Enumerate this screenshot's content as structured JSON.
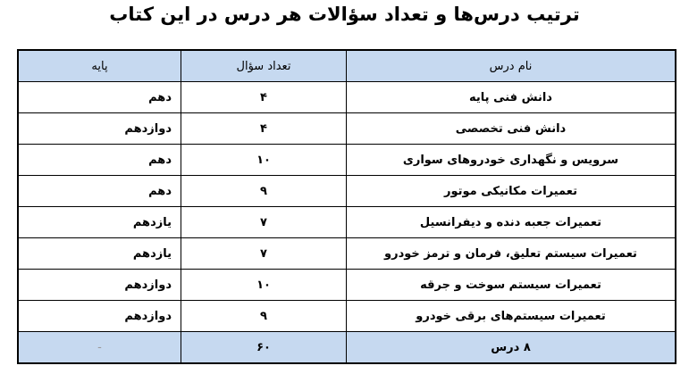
{
  "title": "ترتیب درس‌ها و تعداد سؤالات هر درس در این کتاب",
  "table": {
    "headers": {
      "name": "نام درس",
      "count": "تعداد سؤال",
      "level": "پایه"
    },
    "rows": [
      {
        "name": "دانش فنی پایه",
        "count": "۴",
        "level": "دهم"
      },
      {
        "name": "دانش فنی تخصصی",
        "count": "۴",
        "level": "دوازدهم"
      },
      {
        "name": "سرویس و نگهداری خودروهای سواری",
        "count": "۱۰",
        "level": "دهم"
      },
      {
        "name": "تعمیرات مکانیکی موتور",
        "count": "۹",
        "level": "دهم"
      },
      {
        "name": "تعمیرات جعبه دنده و دیفرانسیل",
        "count": "۷",
        "level": "یازدهم"
      },
      {
        "name": "تعمیرات سیستم تعلیق، فرمان و ترمز خودرو",
        "count": "۷",
        "level": "یازدهم"
      },
      {
        "name": "تعمیرات سیستم سوخت و جرقه",
        "count": "۱۰",
        "level": "دوازدهم"
      },
      {
        "name": "تعمیرات سیستم‌های برقی خودرو",
        "count": "۹",
        "level": "دوازدهم"
      }
    ],
    "footer": {
      "name": "۸ درس",
      "count": "۶۰",
      "level": "-"
    }
  },
  "colors": {
    "header_bg": "#c6d9f0"
  }
}
